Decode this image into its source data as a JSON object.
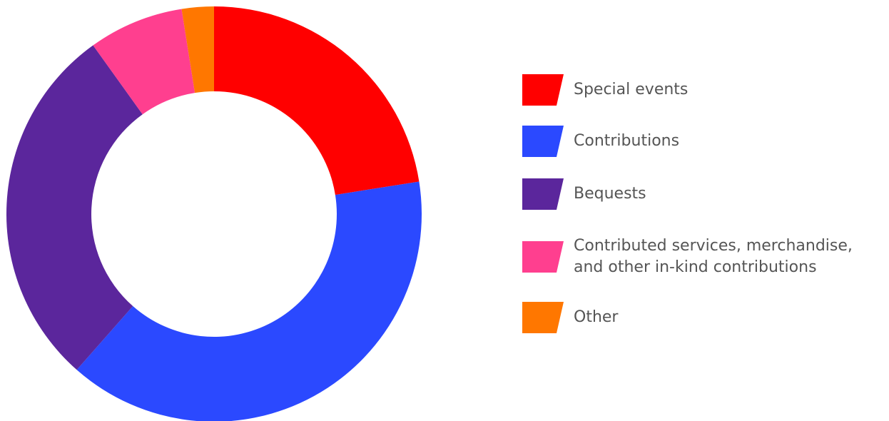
{
  "chart_data": {
    "type": "pie",
    "donut": true,
    "title": "",
    "legend_position": "right",
    "categories": [
      "Special events",
      "Contributions",
      "Bequests",
      "Contributed services, merchandise,\nand other in-kind contributions",
      "Other"
    ],
    "values": [
      22.5,
      39.0,
      28.6,
      7.4,
      2.5
    ],
    "colors": [
      "#ff0000",
      "#2b49ff",
      "#5b269c",
      "#ff3f8f",
      "#ff7700"
    ]
  }
}
